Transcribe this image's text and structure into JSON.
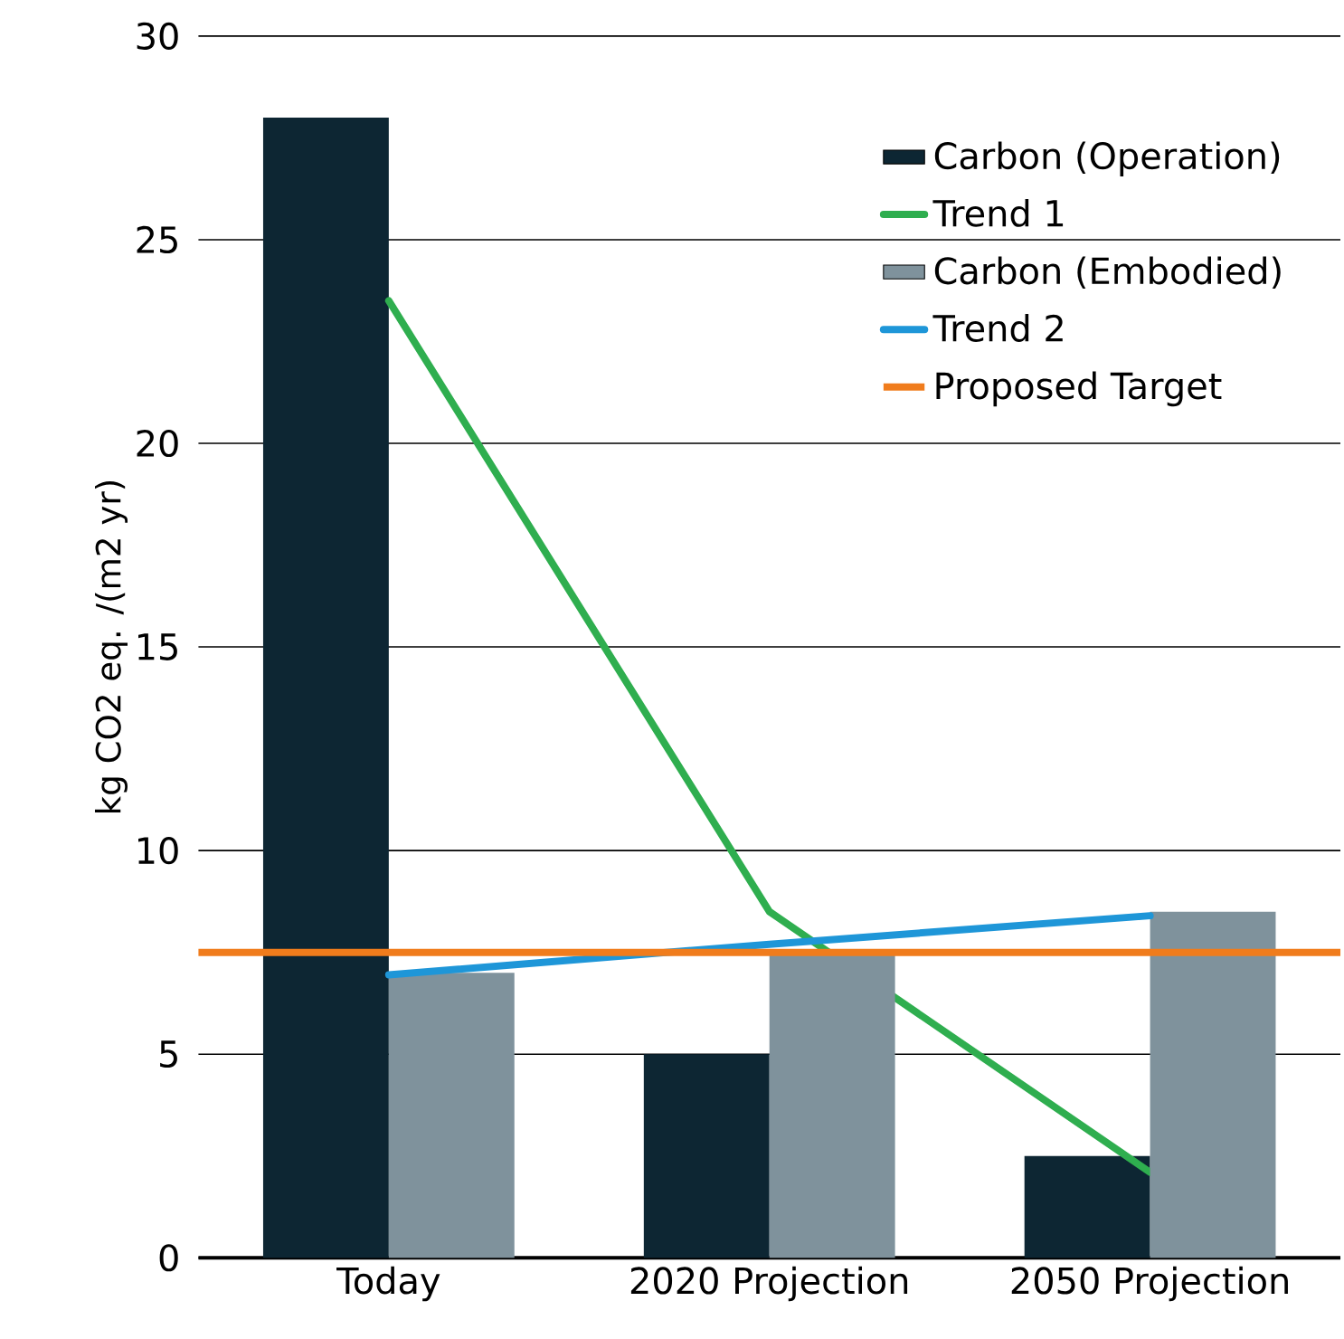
{
  "chart_data": {
    "type": "bar",
    "ylabel": "kg CO2 eq. /(m2 yr)",
    "categories": [
      "Today",
      "2020 Projection",
      "2050 Projection"
    ],
    "series": [
      {
        "name": "Carbon (Operation)",
        "color": "#0d2633",
        "values": [
          28,
          5,
          2.5
        ]
      },
      {
        "name": "Trend 1",
        "type": "line",
        "color": "#2fae4f",
        "values": [
          23.5,
          8.5,
          2.1
        ]
      },
      {
        "name": "Carbon (Embodied)",
        "color": "#7f929c",
        "values": [
          7,
          7.5,
          8.5
        ]
      },
      {
        "name": "Trend 2",
        "type": "line",
        "color": "#1e96d8",
        "values": [
          6.95,
          7.7,
          8.4
        ]
      }
    ],
    "ref_lines": [
      {
        "axis": "y",
        "value": 7.5,
        "label": "Proposed Target",
        "color": "#f07c1c"
      }
    ],
    "ylim": [
      0,
      30
    ],
    "yticks": [
      0,
      5,
      10,
      15,
      20,
      25,
      30
    ],
    "grid": "y",
    "legend": "top right"
  }
}
